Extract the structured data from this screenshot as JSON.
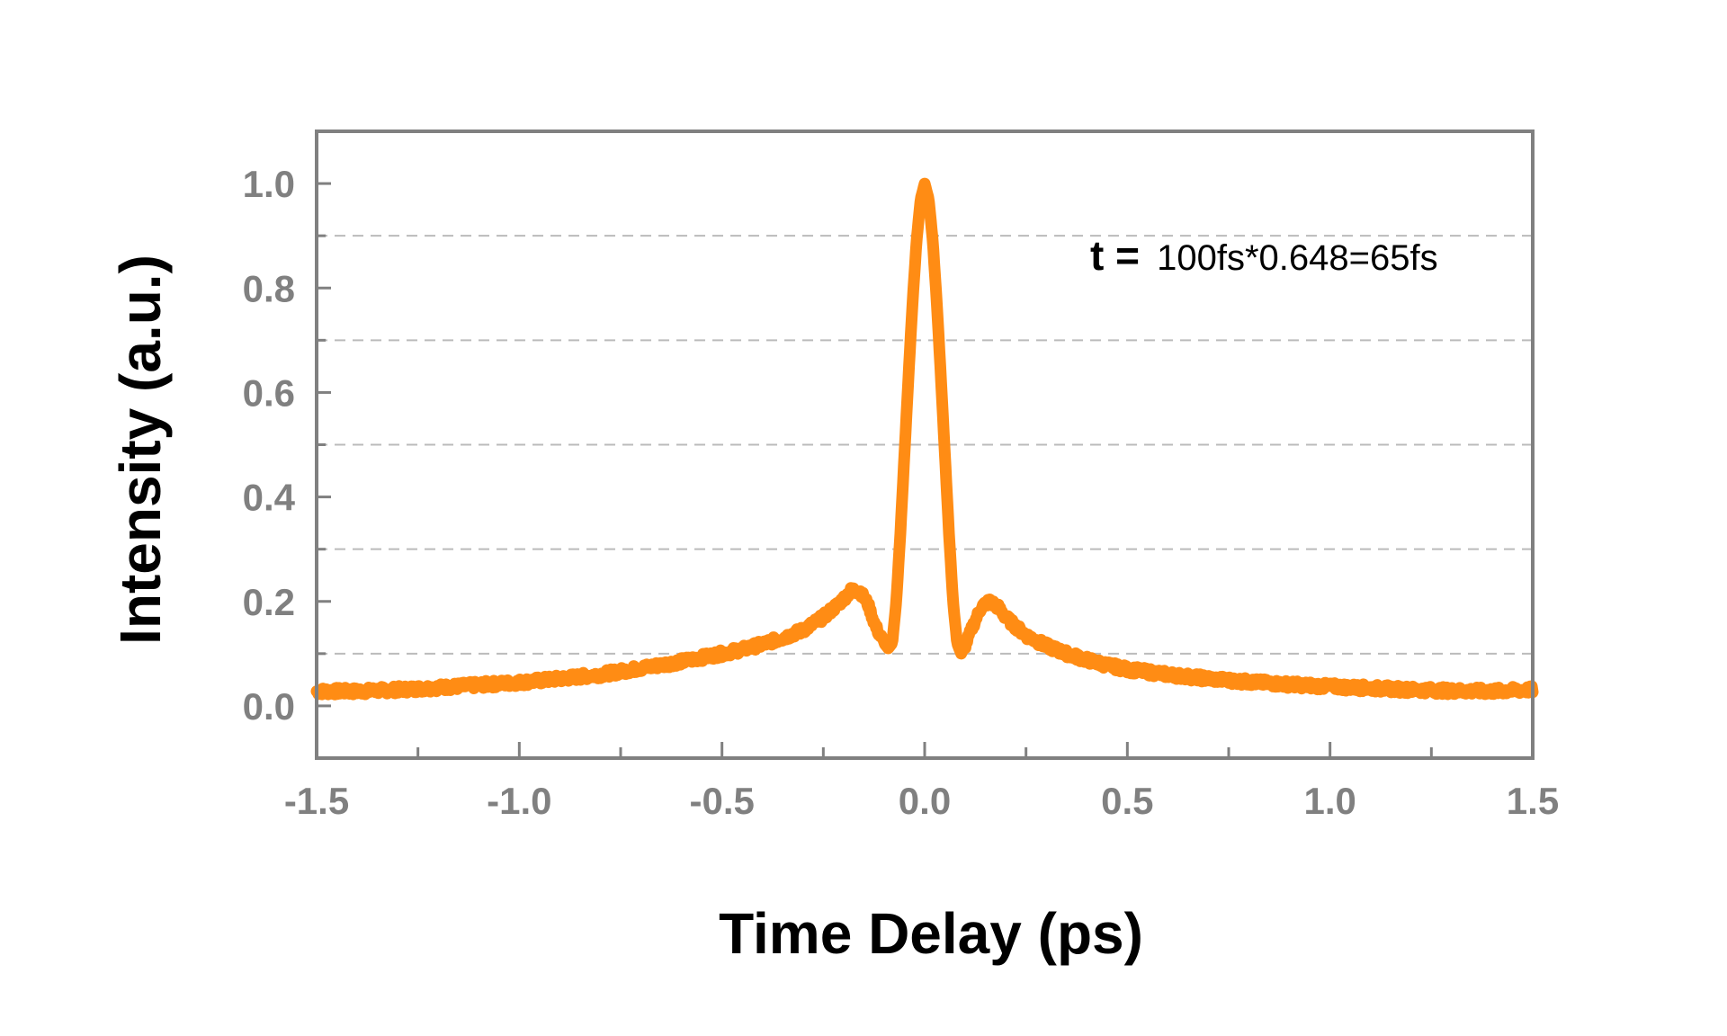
{
  "chart_data": {
    "type": "line",
    "title": "",
    "xlabel": "Time Delay (ps)",
    "ylabel": "Intensity (a.u.)",
    "xlim": [
      -1.5,
      1.5
    ],
    "ylim": [
      -0.1,
      1.1
    ],
    "x_ticks": [
      "-1.5",
      "-1.0",
      "-0.5",
      "0.0",
      "0.5",
      "1.0",
      "1.5"
    ],
    "y_ticks": [
      "0.0",
      "0.2",
      "0.4",
      "0.6",
      "0.8",
      "1.0"
    ],
    "grid": "horizontal-dashed",
    "legend": "none",
    "annotation": {
      "symbol": "t =",
      "text": "100fs*0.648=65fs"
    },
    "series": [
      {
        "color": "#FF8C14",
        "x": [
          -1.5,
          -1.4,
          -1.3,
          -1.2,
          -1.1,
          -1.0,
          -0.9,
          -0.8,
          -0.7,
          -0.6,
          -0.5,
          -0.45,
          -0.4,
          -0.35,
          -0.3,
          -0.25,
          -0.22,
          -0.2,
          -0.18,
          -0.16,
          -0.14,
          -0.12,
          -0.1,
          -0.09,
          -0.08,
          -0.07,
          -0.06,
          -0.05,
          -0.04,
          -0.03,
          -0.02,
          -0.01,
          0.0,
          0.01,
          0.02,
          0.03,
          0.04,
          0.05,
          0.06,
          0.07,
          0.08,
          0.09,
          0.1,
          0.12,
          0.14,
          0.16,
          0.18,
          0.2,
          0.22,
          0.25,
          0.3,
          0.35,
          0.4,
          0.45,
          0.5,
          0.6,
          0.7,
          0.8,
          0.9,
          1.0,
          1.1,
          1.2,
          1.3,
          1.4,
          1.5
        ],
        "y": [
          0.028,
          0.028,
          0.031,
          0.035,
          0.04,
          0.045,
          0.052,
          0.06,
          0.072,
          0.085,
          0.1,
          0.108,
          0.118,
          0.13,
          0.145,
          0.17,
          0.19,
          0.205,
          0.222,
          0.22,
          0.195,
          0.15,
          0.12,
          0.11,
          0.12,
          0.2,
          0.33,
          0.48,
          0.63,
          0.77,
          0.89,
          0.97,
          1.0,
          0.97,
          0.89,
          0.77,
          0.63,
          0.48,
          0.33,
          0.2,
          0.12,
          0.1,
          0.115,
          0.155,
          0.19,
          0.2,
          0.19,
          0.17,
          0.155,
          0.135,
          0.115,
          0.1,
          0.088,
          0.078,
          0.07,
          0.06,
          0.052,
          0.046,
          0.041,
          0.037,
          0.034,
          0.031,
          0.029,
          0.028,
          0.031
        ]
      }
    ]
  }
}
